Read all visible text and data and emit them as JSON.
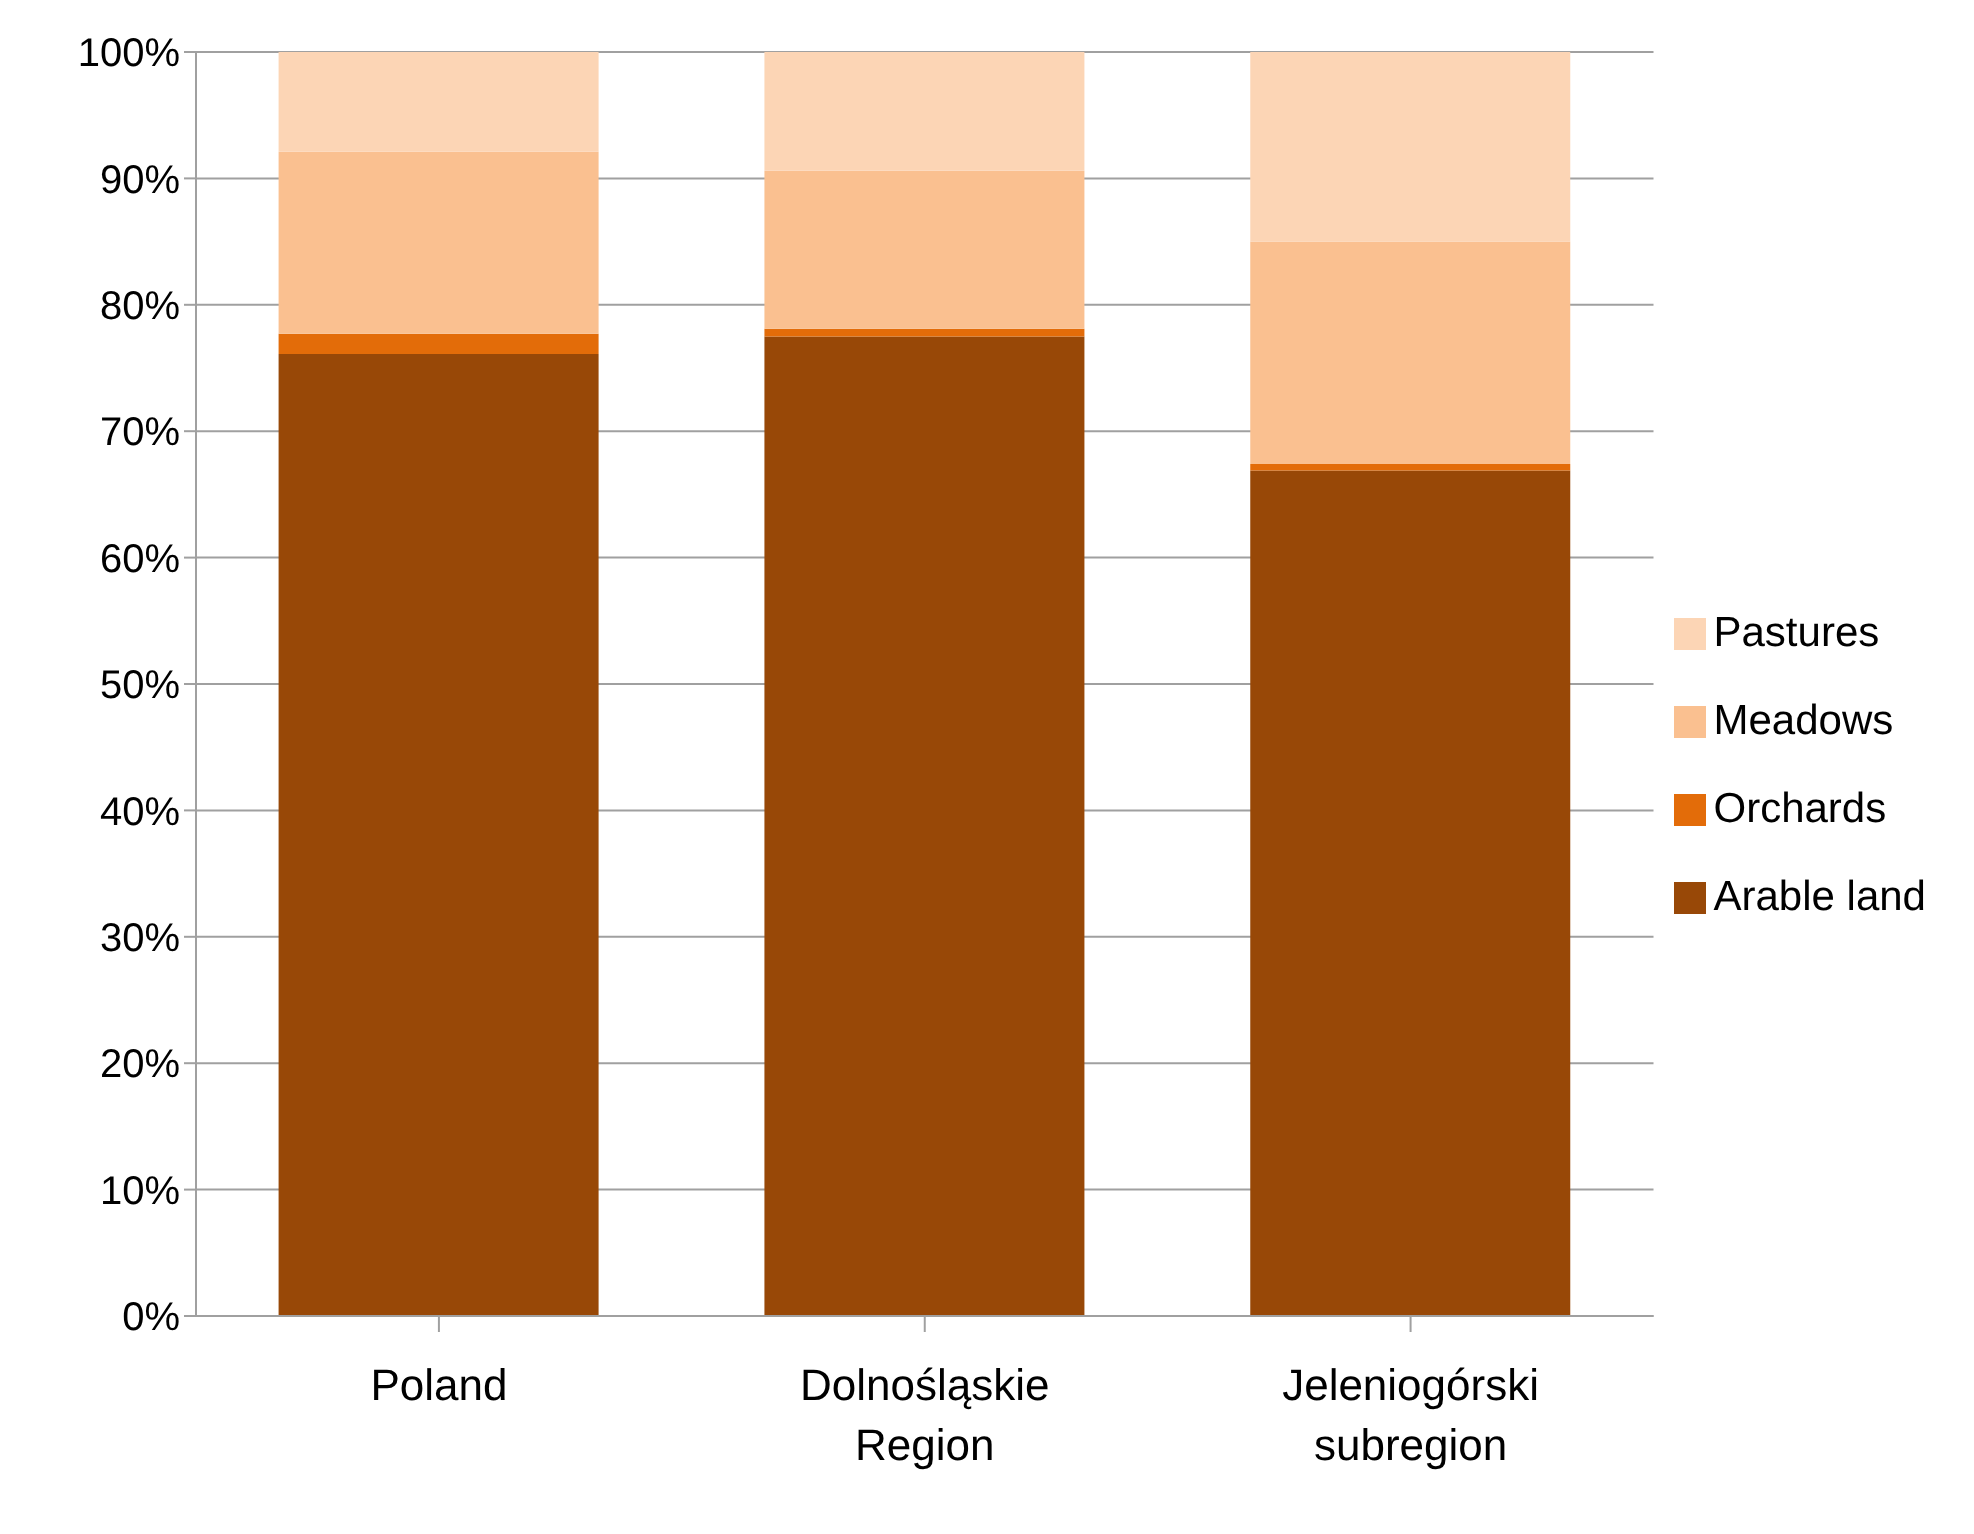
{
  "chart_data": {
    "type": "bar",
    "stacked": true,
    "categories": [
      "Poland",
      "Dolnośląskie Region",
      "Jeleniogórski subregion"
    ],
    "series": [
      {
        "name": "Arable land",
        "color": "#984807",
        "values": [
          76.1,
          77.5,
          66.9
        ]
      },
      {
        "name": "Orchards",
        "color": "#e36c09",
        "values": [
          1.6,
          0.6,
          0.5
        ]
      },
      {
        "name": "Meadows",
        "color": "#fac090",
        "values": [
          14.4,
          12.5,
          17.6
        ]
      },
      {
        "name": "Pastures",
        "color": "#fcd5b5",
        "values": [
          7.9,
          9.4,
          15.0
        ]
      }
    ],
    "ylim": [
      0,
      100
    ],
    "yticks": [
      {
        "value": 0,
        "label": "0%"
      },
      {
        "value": 10,
        "label": "10%"
      },
      {
        "value": 20,
        "label": "20%"
      },
      {
        "value": 30,
        "label": "30%"
      },
      {
        "value": 40,
        "label": "40%"
      },
      {
        "value": 50,
        "label": "50%"
      },
      {
        "value": 60,
        "label": "60%"
      },
      {
        "value": 70,
        "label": "70%"
      },
      {
        "value": 80,
        "label": "80%"
      },
      {
        "value": 90,
        "label": "90%"
      },
      {
        "value": 100,
        "label": "100%"
      }
    ],
    "grid": "y",
    "legend": "right"
  }
}
